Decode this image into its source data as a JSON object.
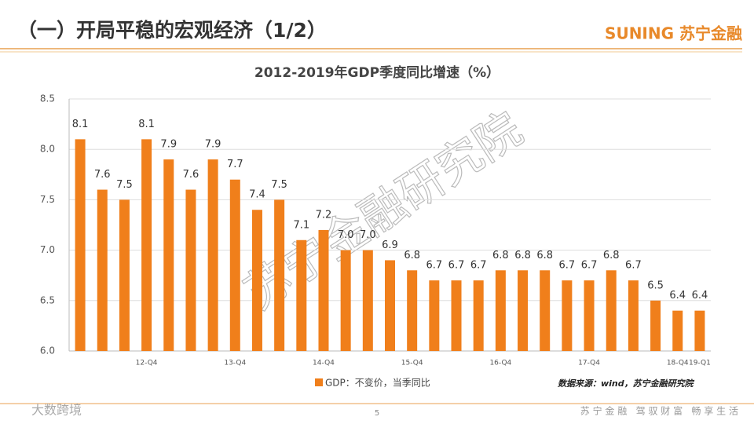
{
  "header": {
    "title": "（一）开局平稳的宏观经济（1/2）",
    "logo": "SUNING 苏宁金融"
  },
  "watermark": "苏宁金融研究院",
  "corner_mark": "大数跨境",
  "source": "数据来源：wind，苏宁金融研究院",
  "page_number": "5",
  "footer": "苏 宁 金 融   驾 驭 财 富   畅 享 生 活",
  "chart_data": {
    "type": "bar",
    "title": "2012-2019年GDP季度同比增速（%）",
    "categories": [
      null,
      null,
      null,
      "12-Q4",
      null,
      null,
      null,
      "13-Q4",
      null,
      null,
      null,
      "14-Q4",
      null,
      null,
      null,
      "15-Q4",
      null,
      null,
      null,
      "16-Q4",
      null,
      null,
      null,
      "17-Q4",
      null,
      null,
      null,
      "18-Q4",
      "19-Q1"
    ],
    "series": [
      {
        "name": "GDP：不变价，当季同比",
        "color": "#f07f1b",
        "values": [
          8.1,
          7.6,
          7.5,
          8.1,
          7.9,
          7.6,
          7.9,
          7.7,
          7.4,
          7.5,
          7.1,
          7.2,
          7.0,
          7.0,
          6.9,
          6.8,
          6.7,
          6.7,
          6.7,
          6.8,
          6.8,
          6.8,
          6.7,
          6.7,
          6.8,
          6.7,
          6.5,
          6.4,
          6.4
        ],
        "value_labels": [
          "8.1",
          "7.6",
          "7.5",
          "8.1",
          "7.9",
          "7.6",
          "7.9",
          "7.7",
          "7.4",
          "7.5",
          "7.1",
          "7.2",
          "7.0",
          "7.0",
          "6.9",
          "6.8",
          "6.7",
          "6.7",
          "6.7",
          "6.8",
          "6.8",
          "6.8",
          "6.7",
          "6.7",
          "6.8",
          "6.7",
          "6.5",
          "6.4",
          "6.4"
        ]
      }
    ],
    "ylim": [
      6.0,
      8.5
    ],
    "yticks": [
      {
        "value": 6.0,
        "label": "6.0"
      },
      6.5,
      {
        "value": 7.0,
        "label": "7.0"
      },
      7.5,
      {
        "value": 8.0,
        "label": "8.0"
      },
      8.5
    ],
    "grid": true,
    "legend": "bottom"
  }
}
